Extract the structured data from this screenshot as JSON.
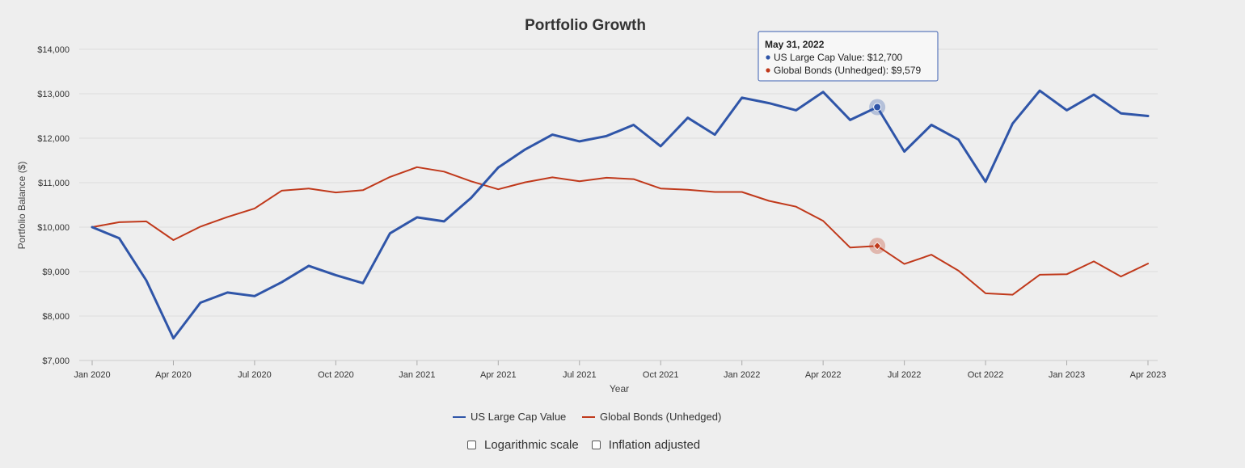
{
  "chart_data": {
    "type": "line",
    "title": "Portfolio Growth",
    "xlabel": "Year",
    "ylabel": "Portfolio Balance ($)",
    "ylim": [
      7000,
      14000
    ],
    "yticks": [
      7000,
      8000,
      9000,
      10000,
      11000,
      12000,
      13000,
      14000
    ],
    "ytick_labels": [
      "$7,000",
      "$8,000",
      "$9,000",
      "$10,000",
      "$11,000",
      "$12,000",
      "$13,000",
      "$14,000"
    ],
    "x": [
      "Jan 2020",
      "Feb 2020",
      "Mar 2020",
      "Apr 2020",
      "May 2020",
      "Jun 2020",
      "Jul 2020",
      "Aug 2020",
      "Sep 2020",
      "Oct 2020",
      "Nov 2020",
      "Dec 2020",
      "Jan 2021",
      "Feb 2021",
      "Mar 2021",
      "Apr 2021",
      "May 2021",
      "Jun 2021",
      "Jul 2021",
      "Aug 2021",
      "Sep 2021",
      "Oct 2021",
      "Nov 2021",
      "Dec 2021",
      "Jan 2022",
      "Feb 2022",
      "Mar 2022",
      "Apr 2022",
      "May 2022",
      "Jun 2022",
      "Jul 2022",
      "Aug 2022",
      "Sep 2022",
      "Oct 2022",
      "Nov 2022",
      "Dec 2022",
      "Jan 2023",
      "Feb 2023",
      "Mar 2023",
      "Apr 2023"
    ],
    "xtick_indices": [
      0,
      3,
      6,
      9,
      12,
      15,
      18,
      21,
      24,
      27,
      30,
      33,
      36,
      39
    ],
    "xtick_labels": [
      "Jan 2020",
      "Apr 2020",
      "Jul 2020",
      "Oct 2020",
      "Jan 2021",
      "Apr 2021",
      "Jul 2021",
      "Oct 2021",
      "Jan 2022",
      "Apr 2022",
      "Jul 2022",
      "Oct 2022",
      "Jan 2023",
      "Apr 2023"
    ],
    "series": [
      {
        "name": "US Large Cap Value",
        "color": "#2f55a8",
        "values": [
          10000,
          9750,
          8800,
          7500,
          8300,
          8530,
          8450,
          8760,
          9130,
          8920,
          8740,
          9860,
          10220,
          10130,
          10660,
          11340,
          11750,
          12080,
          11930,
          12050,
          12300,
          11820,
          12460,
          12080,
          12910,
          12790,
          12630,
          13040,
          12410,
          12700,
          11700,
          12300,
          11970,
          11020,
          12330,
          13070,
          12630,
          12980,
          12560,
          12500
        ]
      },
      {
        "name": "Global Bonds (Unhedged)",
        "color": "#c0391b",
        "values": [
          10000,
          10110,
          10130,
          9710,
          10010,
          10230,
          10420,
          10820,
          10870,
          10780,
          10830,
          11130,
          11350,
          11250,
          11030,
          10850,
          11010,
          11120,
          11030,
          11110,
          11080,
          10870,
          10840,
          10790,
          10790,
          10590,
          10460,
          10140,
          9540,
          9579,
          9170,
          9380,
          9020,
          8510,
          8480,
          8930,
          8940,
          9230,
          8890,
          9180
        ]
      }
    ],
    "highlight_index": 29,
    "tooltip": {
      "date": "May 31, 2022",
      "lines": [
        "US Large Cap Value: $12,700",
        "Global Bonds (Unhedged): $9,579"
      ]
    },
    "legend_position": "bottom"
  },
  "controls": {
    "log_scale_label": "Logarithmic scale",
    "inflation_label": "Inflation adjusted"
  }
}
